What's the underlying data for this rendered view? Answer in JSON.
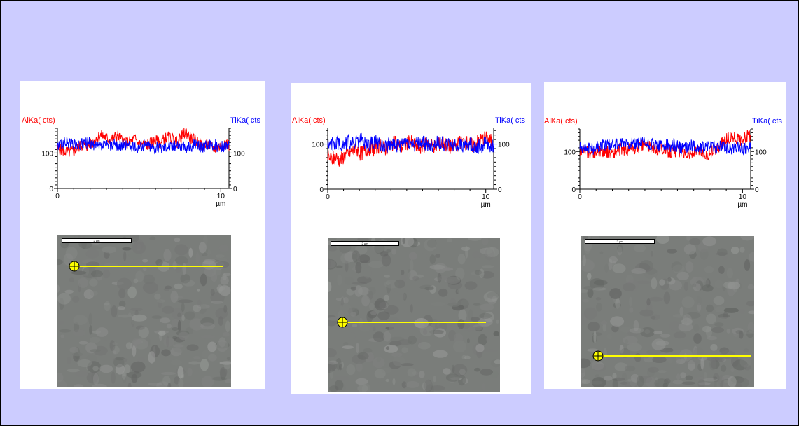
{
  "colors": {
    "background": "#ccccff",
    "alka": "#ff0000",
    "tika": "#0000ff",
    "scan_line": "#ffff00"
  },
  "chart_data": [
    {
      "type": "line",
      "left_axis_label": "AlKa( cts)",
      "right_axis_label": "TiKa( cts",
      "left_ticks": [
        "100",
        "0"
      ],
      "right_ticks": [
        "100",
        "0"
      ],
      "x_ticks": [
        "0",
        "10"
      ],
      "x_unit": "µm",
      "xlim": [
        0,
        10.5
      ],
      "ylim": [
        0,
        170
      ],
      "series": [
        {
          "name": "AlKa( cts)",
          "color": "#ff0000",
          "values": [
            112,
            108,
            104,
            102,
            106,
            118,
            124,
            120,
            126,
            140,
            150,
            146,
            138,
            142,
            150,
            136,
            128,
            132,
            140,
            126,
            124,
            122,
            130,
            134,
            128,
            142,
            144,
            138,
            130,
            148,
            160,
            142,
            138,
            128,
            118,
            124,
            118,
            112,
            120,
            130,
            122
          ]
        },
        {
          "name": "TiKa( cts",
          "color": "#0000ff",
          "values": [
            118,
            124,
            130,
            128,
            124,
            120,
            126,
            130,
            124,
            116,
            118,
            122,
            120,
            126,
            122,
            118,
            124,
            120,
            114,
            118,
            122,
            124,
            118,
            116,
            114,
            120,
            122,
            118,
            126,
            120,
            112,
            118,
            124,
            120,
            116,
            122,
            124,
            120,
            118,
            120,
            122
          ]
        }
      ]
    },
    {
      "type": "line",
      "left_axis_label": "AlKa( cts)",
      "right_axis_label": "TiKa( cts",
      "left_ticks": [
        "100",
        "0"
      ],
      "right_ticks": [
        "100",
        "0"
      ],
      "x_ticks": [
        "0",
        "10"
      ],
      "x_unit": "µm",
      "xlim": [
        0,
        10.5
      ],
      "ylim": [
        0,
        135
      ],
      "series": [
        {
          "name": "AlKa( cts)",
          "color": "#ff0000",
          "values": [
            72,
            66,
            70,
            64,
            74,
            80,
            84,
            88,
            78,
            86,
            92,
            88,
            96,
            94,
            90,
            98,
            102,
            96,
            94,
            100,
            104,
            98,
            92,
            96,
            102,
            98,
            94,
            100,
            104,
            96,
            92,
            98,
            102,
            106,
            100,
            96,
            104,
            110,
            114,
            108,
            104
          ]
        },
        {
          "name": "TiKa( cts",
          "color": "#0000ff",
          "values": [
            96,
            100,
            104,
            98,
            102,
            106,
            100,
            104,
            108,
            102,
            98,
            104,
            106,
            100,
            96,
            102,
            98,
            94,
            100,
            104,
            98,
            96,
            100,
            102,
            98,
            94,
            100,
            104,
            98,
            96,
            100,
            94,
            96,
            100,
            102,
            98,
            94,
            96,
            100,
            98,
            96
          ]
        }
      ]
    },
    {
      "type": "line",
      "left_axis_label": "AlKa( cts)",
      "right_axis_label": "TiKa( cts",
      "left_ticks": [
        "100",
        "0"
      ],
      "right_ticks": [
        "100",
        "0"
      ],
      "x_ticks": [
        "0",
        "10"
      ],
      "x_unit": "µm",
      "xlim": [
        0,
        10.5
      ],
      "ylim": [
        0,
        160
      ],
      "series": [
        {
          "name": "AlKa( cts)",
          "color": "#ff0000",
          "values": [
            106,
            100,
            96,
            92,
            100,
            104,
            98,
            100,
            96,
            104,
            108,
            102,
            110,
            106,
            112,
            118,
            114,
            108,
            106,
            110,
            104,
            100,
            98,
            104,
            100,
            96,
            92,
            98,
            102,
            96,
            92,
            100,
            110,
            118,
            130,
            136,
            138,
            130,
            134,
            140,
            144
          ]
        },
        {
          "name": "TiKa( cts",
          "color": "#0000ff",
          "values": [
            110,
            112,
            114,
            108,
            112,
            116,
            118,
            120,
            124,
            118,
            122,
            126,
            120,
            118,
            122,
            124,
            118,
            120,
            116,
            112,
            116,
            114,
            118,
            112,
            108,
            114,
            118,
            112,
            108,
            114,
            118,
            114,
            110,
            114,
            112,
            108,
            110,
            114,
            108,
            106,
            110
          ]
        }
      ]
    }
  ],
  "sem_images": [
    {
      "scale_label": "2 µm"
    },
    {
      "scale_label": "2 µm"
    },
    {
      "scale_label": "2 µm"
    }
  ]
}
